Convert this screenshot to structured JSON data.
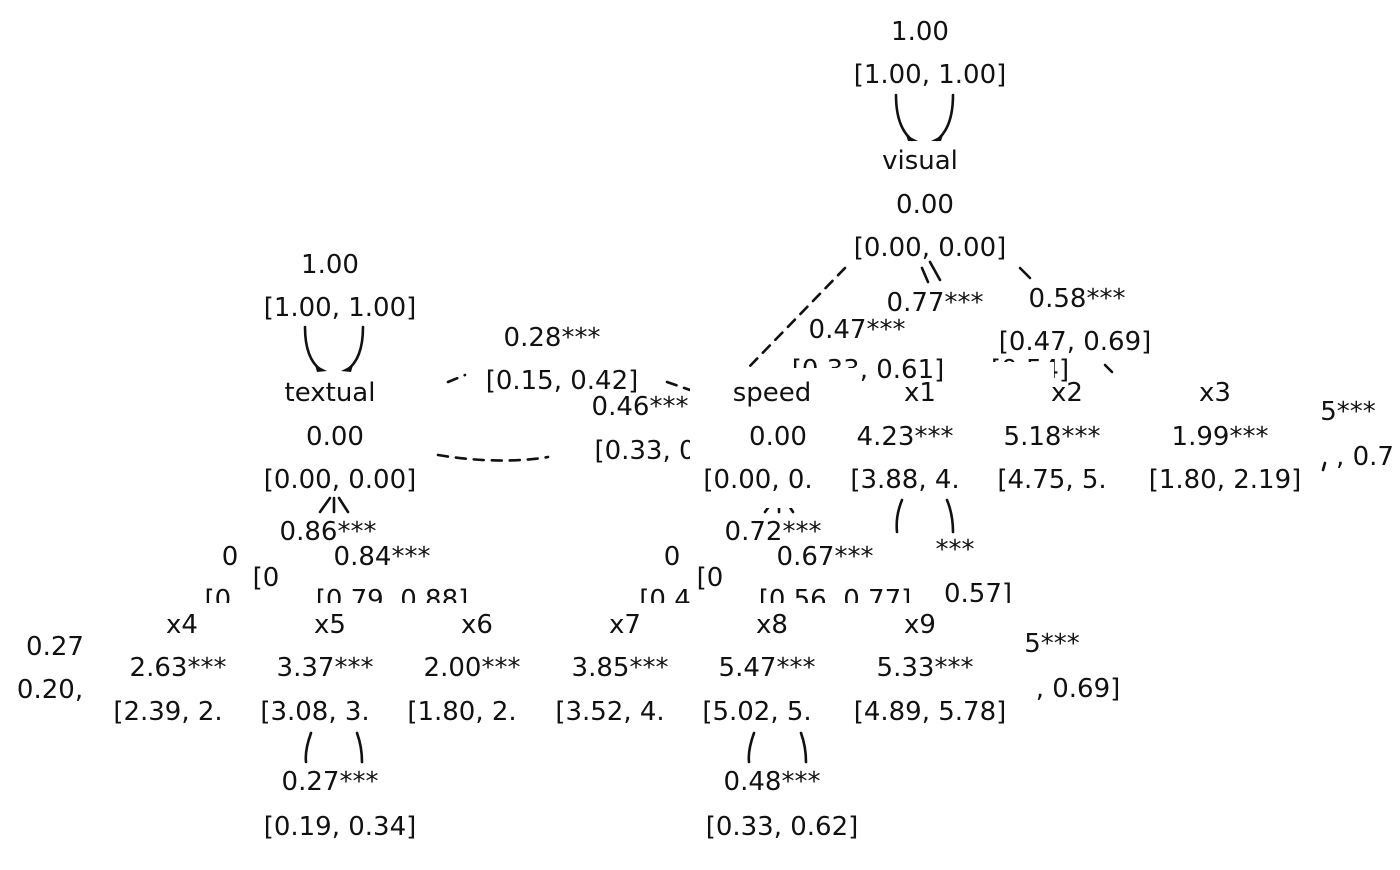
{
  "latent_nodes": [
    {
      "id": "visual",
      "label": "visual",
      "estimate": "0.00",
      "ci": "[0.00, 0.00]"
    },
    {
      "id": "textual",
      "label": "textual",
      "estimate": "0.00",
      "ci": "[0.00, 0.00]"
    },
    {
      "id": "speed",
      "label": "speed",
      "estimate": "0.00",
      "ci": "[0.00, 0."
    }
  ],
  "observed_nodes": [
    {
      "id": "x1",
      "label": "x1",
      "estimate": "4.23***",
      "ci": "[3.88, 4."
    },
    {
      "id": "x2",
      "label": "x2",
      "estimate": "5.18***",
      "ci": "[4.75, 5."
    },
    {
      "id": "x3",
      "label": "x3",
      "estimate": "1.99***",
      "ci": "[1.80, 2.19]"
    },
    {
      "id": "x4",
      "label": "x4",
      "estimate": "2.63***",
      "ci": "[2.39, 2."
    },
    {
      "id": "x5",
      "label": "x5",
      "estimate": "3.37***",
      "ci": "[3.08, 3."
    },
    {
      "id": "x6",
      "label": "x6",
      "estimate": "2.00***",
      "ci": "[1.80, 2."
    },
    {
      "id": "x7",
      "label": "x7",
      "estimate": "3.85***",
      "ci": "[3.52, 4."
    },
    {
      "id": "x8",
      "label": "x8",
      "estimate": "5.47***",
      "ci": "[5.02, 5."
    },
    {
      "id": "x9",
      "label": "x9",
      "estimate": "5.33***",
      "ci": "[4.89, 5.78]"
    }
  ],
  "variances": [
    {
      "node": "visual",
      "estimate": "1.00",
      "ci": "[1.00, 1.00]"
    },
    {
      "node": "textual",
      "estimate": "1.00",
      "ci": "[1.00, 1.00]"
    },
    {
      "node": "x5",
      "estimate": "0.27***",
      "ci": "[0.19, 0.34]"
    },
    {
      "node": "x8",
      "estimate": "0.48***",
      "ci": "[0.33, 0.62]"
    }
  ],
  "covariances": [
    {
      "from": "textual",
      "to": "speed",
      "estimate": "0.28***",
      "ci": "[0.15, 0.42]"
    },
    {
      "from": "textual",
      "to": "speed",
      "estimate": "0.46***",
      "ci": "[0.33, 0"
    }
  ],
  "loadings": [
    {
      "from": "visual",
      "to": "speed",
      "estimate": "0.47***",
      "ci": "[0.33, 0.61]"
    },
    {
      "from": "visual",
      "to": "x1",
      "estimate": "0.77***",
      "ci": "[0.54]"
    },
    {
      "from": "visual",
      "to": "x2",
      "estimate": "0.58***",
      "ci": "[0.47, 0.69]"
    },
    {
      "from": "textual",
      "to": "x4",
      "estimate": "0.86***",
      "ci": "[0"
    },
    {
      "from": "textual",
      "to": "x5",
      "estimate": "0.84***",
      "ci": "[0.79, 0.88]"
    },
    {
      "from": "speed",
      "to": "x7",
      "estimate": "0.72***",
      "ci": "[0"
    },
    {
      "from": "speed",
      "to": "x8",
      "estimate": "0.67***",
      "ci": "[0.56, 0.77]"
    }
  ],
  "fragments": {
    "x1_residual_est": "***",
    "x1_residual_ci": "0.57]",
    "x3_side_est": "5***",
    "x3_side_ci": ", 0.7",
    "x9_side_est": "5***",
    "x9_side_ci": ", 0.69]",
    "left_est": "0.27",
    "left_ci": "0.20,",
    "textual_left_est": "0",
    "textual_left_ci": "[0.",
    "speed_left_est": "0",
    "speed_left_ci": "[0.4"
  }
}
